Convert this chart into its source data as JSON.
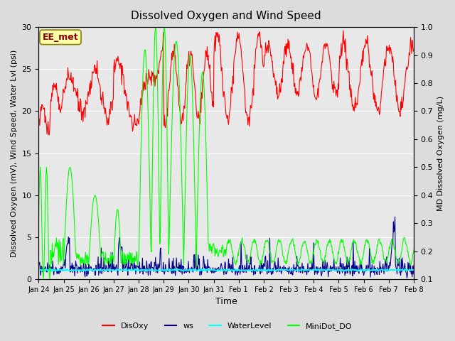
{
  "title": "Dissolved Oxygen and Wind Speed",
  "ylabel_left": "Dissolved Oxygen (mV), Wind Speed, Water Lvl (psi)",
  "ylabel_right": "MD Dissolved Oxygen (mg/L)",
  "xlabel": "Time",
  "ylim_left": [
    0,
    30
  ],
  "ylim_right": [
    0.1,
    1.0
  ],
  "annotation_text": "EE_met",
  "annotation_box_color": "#FFFFAA",
  "annotation_text_color": "#8B0000",
  "bg_color": "#DCDCDC",
  "plot_bg_color": "#E8E8E8",
  "legend_labels": [
    "DisOxy",
    "ws",
    "WaterLevel",
    "MiniDot_DO"
  ],
  "legend_colors": [
    "red",
    "#00008B",
    "cyan",
    "lime"
  ],
  "legend_linestyles": [
    "-",
    "-",
    "-",
    "-"
  ],
  "xtick_labels": [
    "Jan 24",
    "Jan 25",
    "Jan 26",
    "Jan 27",
    "Jan 28",
    "Jan 29",
    "Jan 30",
    "Jan 31",
    "Feb 1",
    "Feb 2",
    "Feb 3",
    "Feb 4",
    "Feb 5",
    "Feb 6",
    "Feb 7",
    "Feb 8"
  ],
  "yticks_left": [
    0,
    5,
    10,
    15,
    20,
    25,
    30
  ],
  "yticks_right": [
    0.1,
    0.2,
    0.3,
    0.4,
    0.5,
    0.6,
    0.7,
    0.8,
    0.9,
    1.0
  ],
  "num_days": 15,
  "points_per_day": 48
}
